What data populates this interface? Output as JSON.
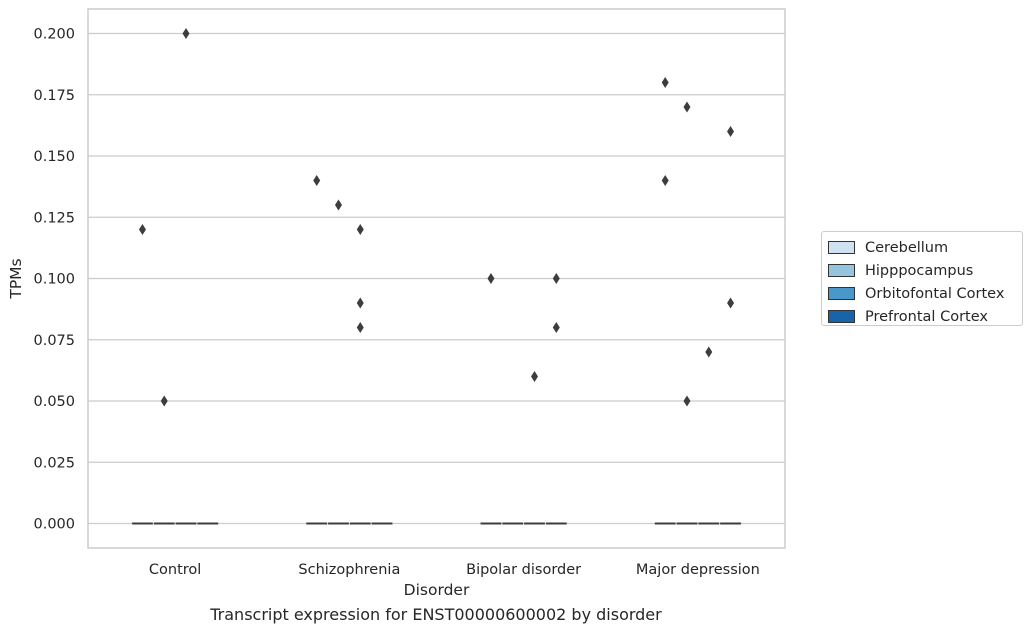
{
  "chart_data": {
    "type": "box",
    "title": "Transcript expression for ENST00000600002 by disorder",
    "xlabel": "Disorder",
    "ylabel": "TPMs",
    "categories": [
      "Control",
      "Schizophrenia",
      "Bipolar disorder",
      "Major depression"
    ],
    "yticks": [
      "0.000",
      "0.025",
      "0.050",
      "0.075",
      "0.100",
      "0.125",
      "0.150",
      "0.175",
      "0.200"
    ],
    "ylim": [
      -0.01,
      0.21
    ],
    "grid": true,
    "legend_position": "right",
    "series": [
      {
        "name": "Cerebellum",
        "color": "#d0e1f2",
        "outliers": [
          [
            0.12
          ],
          [
            0.14
          ],
          [
            0.1
          ],
          [
            0.14,
            0.18
          ]
        ]
      },
      {
        "name": "Hipppocampus",
        "color": "#94c4df",
        "outliers": [
          [
            0.05
          ],
          [
            0.13
          ],
          [],
          [
            0.05,
            0.17
          ]
        ]
      },
      {
        "name": "Orbitofontal Cortex",
        "color": "#4a98c9",
        "outliers": [
          [
            0.2
          ],
          [
            0.08,
            0.09,
            0.12
          ],
          [
            0.06
          ],
          [
            0.07
          ]
        ]
      },
      {
        "name": "Prefrontal Cortex",
        "color": "#1764ab",
        "outliers": [
          [],
          [],
          [
            0.08,
            0.1
          ],
          [
            0.09,
            0.16
          ]
        ]
      }
    ],
    "medians": [
      0,
      0,
      0,
      0
    ]
  }
}
